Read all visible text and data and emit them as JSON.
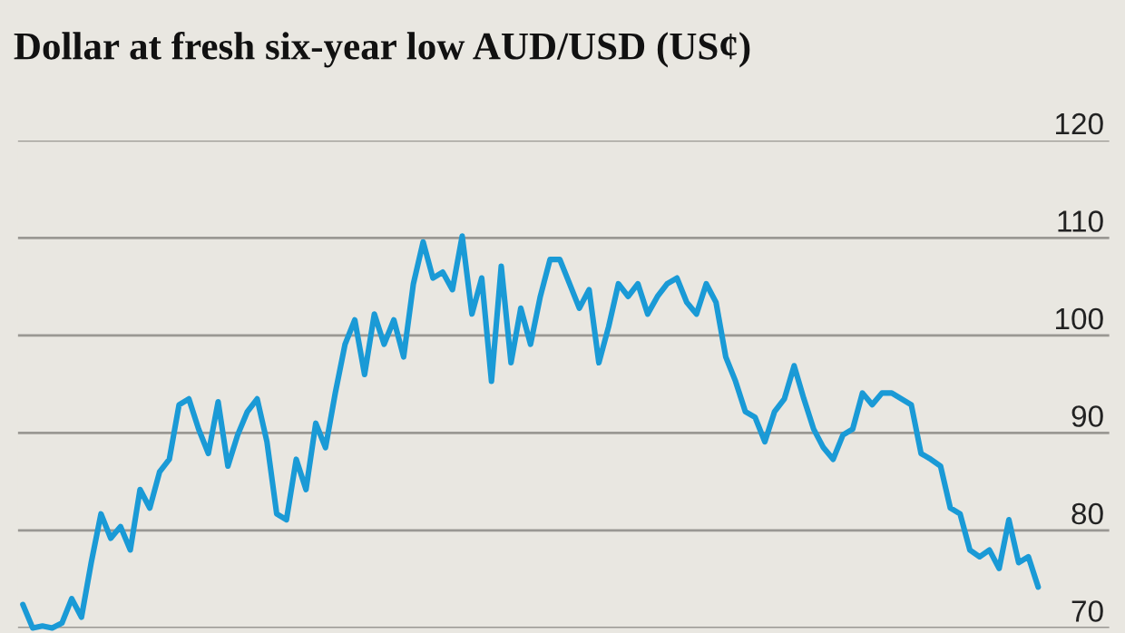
{
  "chart_data": {
    "type": "line",
    "title": "Dollar at fresh six-year low AUD/USD (US¢)",
    "categories": [
      null,
      null,
      null,
      null,
      null,
      null,
      null,
      null,
      null,
      null,
      null,
      null,
      null,
      null,
      null,
      null,
      null,
      null,
      null,
      null,
      null,
      null,
      null,
      null,
      null,
      null,
      null,
      null,
      null,
      null,
      null,
      null,
      null,
      null,
      null,
      null,
      null,
      null,
      null,
      null,
      null,
      null,
      null,
      null,
      null,
      null,
      null,
      null,
      null,
      null,
      null,
      null,
      null,
      null,
      null,
      null,
      null,
      null,
      null,
      null,
      null,
      null,
      null,
      null,
      null,
      null,
      null,
      null,
      null,
      null,
      null,
      null,
      null,
      null,
      null,
      null,
      null,
      null,
      null,
      null,
      null,
      null,
      null,
      null,
      null,
      null,
      null,
      null,
      null,
      null,
      null,
      null,
      null,
      null,
      null,
      null,
      null,
      null,
      null,
      null,
      null,
      null,
      null,
      null,
      null
    ],
    "series": [
      {
        "color": "#1a9ad6",
        "values": [
          72.4,
          70.0,
          70.2,
          70.0,
          70.5,
          73.0,
          71.1,
          76.7,
          81.7,
          79.2,
          80.4,
          78.0,
          84.2,
          82.3,
          86.0,
          87.3,
          92.9,
          93.5,
          90.4,
          87.9,
          93.2,
          86.6,
          89.8,
          92.2,
          93.5,
          89.1,
          81.7,
          81.1,
          87.3,
          84.2,
          91.0,
          88.5,
          94.1,
          99.1,
          101.6,
          96.0,
          102.2,
          99.1,
          101.6,
          97.8,
          105.3,
          109.6,
          105.9,
          106.5,
          104.7,
          110.2,
          102.2,
          105.9,
          95.3,
          107.1,
          97.2,
          102.8,
          99.1,
          104.0,
          107.8,
          107.8,
          105.3,
          102.8,
          104.7,
          97.2,
          100.9,
          105.3,
          104.0,
          105.3,
          102.2,
          104.0,
          105.3,
          105.9,
          103.4,
          102.2,
          105.3,
          103.4,
          97.8,
          95.3,
          92.2,
          91.6,
          89.1,
          92.2,
          93.5,
          96.9,
          93.5,
          90.4,
          88.5,
          87.3,
          89.8,
          90.4,
          94.1,
          92.9,
          94.1,
          94.1,
          93.5,
          92.9,
          87.9,
          87.3,
          86.6,
          82.3,
          81.7,
          78.0,
          77.3,
          78.0,
          76.1,
          81.1,
          76.7,
          77.3,
          74.2
        ]
      }
    ],
    "ylim": [
      70,
      120
    ],
    "yticks": [
      70,
      80,
      90,
      100,
      110,
      120
    ],
    "grid": "y",
    "legend": false,
    "tick_labels": "y"
  }
}
